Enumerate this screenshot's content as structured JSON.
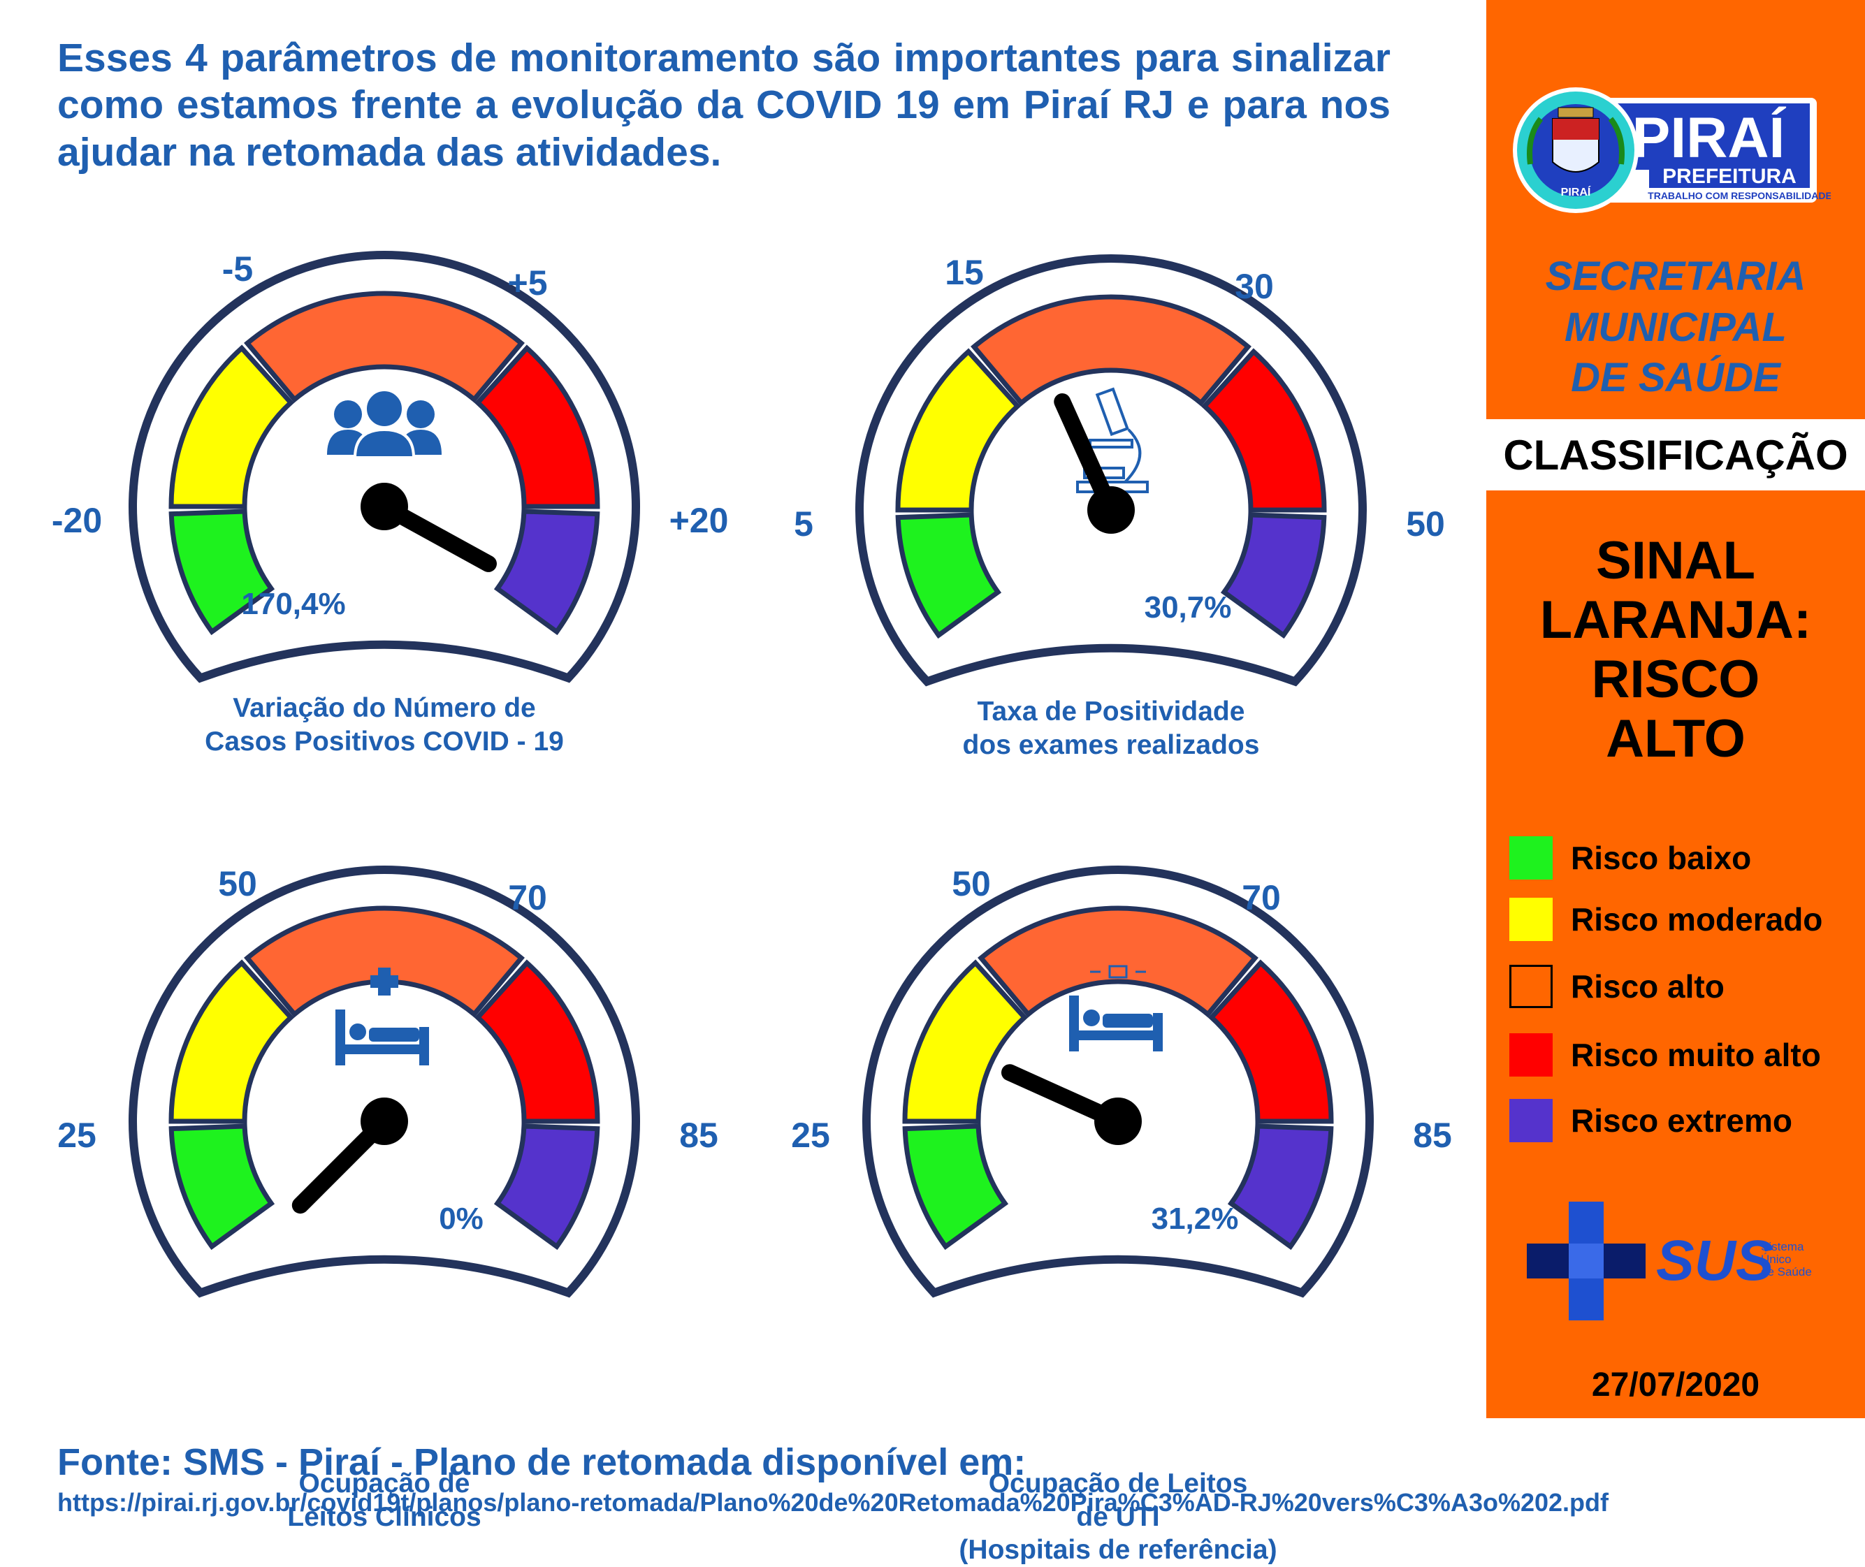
{
  "intro": "Esses 4 parâmetros de monitoramento são importantes para sinalizar como estamos frente a evolução da COVID 19 em Piraí RJ e para nos ajudar na retomada das atividades.",
  "colors": {
    "green": "#1ef21e",
    "yellow": "#ffff00",
    "orange": "#ff6633",
    "red": "#ff0000",
    "purple": "#5533cc",
    "navy": "#23335c",
    "blue": "#1f5fb0"
  },
  "gauges": [
    {
      "id": "casos",
      "labels": {
        "far_left": "-20",
        "top_left": "-5",
        "top_right": "+5",
        "far_right": "+20"
      },
      "value_text": "170,4%",
      "icon": "people-icon",
      "caption": [
        "Variação do Número de",
        "Casos Positivos COVID - 19"
      ],
      "needle_level": "extreme"
    },
    {
      "id": "positividade",
      "labels": {
        "far_left": "5",
        "top_left": "15",
        "top_right": "30",
        "far_right": "50"
      },
      "value_text": "30,7%",
      "icon": "microscope-icon",
      "caption": [
        "Taxa de Positividade",
        "dos exames realizados"
      ],
      "needle_level": "high"
    },
    {
      "id": "leitos-clinicos",
      "labels": {
        "far_left": "25",
        "top_left": "50",
        "top_right": "70",
        "far_right": "85"
      },
      "value_text": "0%",
      "icon": "hospital-bed-icon",
      "caption": [
        "Ocupação de",
        "Leitos Clínicos"
      ],
      "needle_level": "low"
    },
    {
      "id": "leitos-uti",
      "labels": {
        "far_left": "25",
        "top_left": "50",
        "top_right": "70",
        "far_right": "85"
      },
      "value_text": "31,2%",
      "icon": "icu-bed-icon",
      "caption": [
        "Ocupação de Leitos",
        "de UTI",
        "(Hospitais de referência)"
      ],
      "needle_level": "moderate"
    }
  ],
  "footer": {
    "title": "Fonte: SMS - Piraí - Plano de retomada disponível em:",
    "url": "https://pirai.rj.gov.br/covid19t/planos/plano-retomada/Plano%20de%20Retomada%20Pira%C3%AD-RJ%20vers%C3%A3o%202.pdf"
  },
  "panel": {
    "logo": {
      "name": "PIRAÍ",
      "sub": "PREFEITURA",
      "motto": "TRABALHO COM RESPONSABILIDADE",
      "seal_text": "PIRAÍ"
    },
    "secretaria": [
      "SECRETARIA",
      "MUNICIPAL",
      "DE SAÚDE"
    ],
    "classificacao": "CLASSIFICAÇÃO",
    "sinal": [
      "SINAL",
      "LARANJA:",
      "RISCO",
      "ALTO"
    ],
    "legend": [
      {
        "label": "Risco baixo",
        "color": "#1ef21e",
        "outline": false
      },
      {
        "label": "Risco moderado",
        "color": "#ffff00",
        "outline": false
      },
      {
        "label": "Risco alto",
        "color": "#ff6600",
        "outline": true
      },
      {
        "label": "Risco muito alto",
        "color": "#ff0000",
        "outline": false
      },
      {
        "label": "Risco extremo",
        "color": "#5533cc",
        "outline": false
      }
    ],
    "sus": {
      "name": "SUS",
      "line1": "Sistema",
      "line2": "Único",
      "line3": "de Saúde"
    },
    "date": "27/07/2020"
  }
}
